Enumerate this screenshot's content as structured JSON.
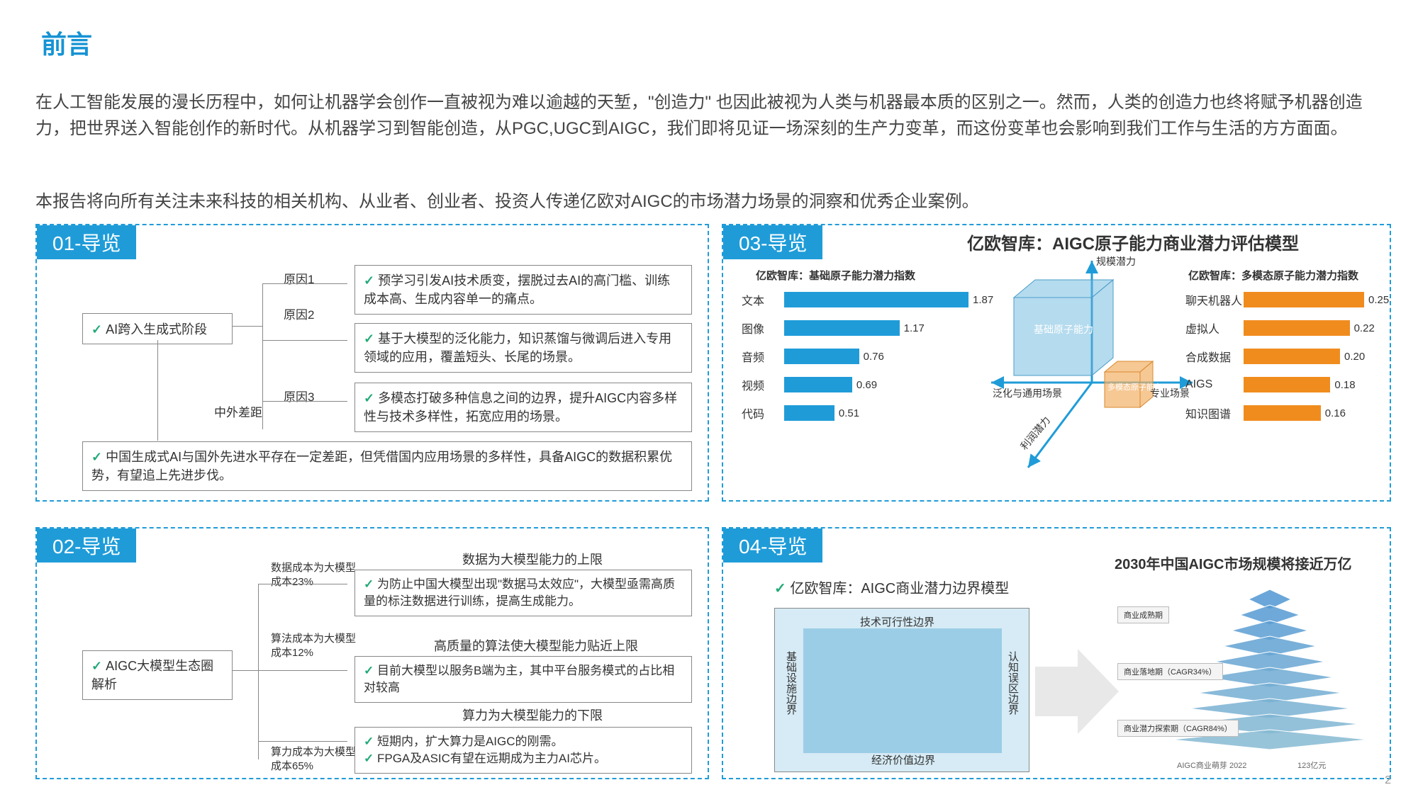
{
  "page": {
    "title": "前言",
    "number": "2"
  },
  "intro": {
    "p1": "在人工智能发展的漫长历程中，如何让机器学会创作一直被视为难以逾越的天堑，\"创造力\" 也因此被视为人类与机器最本质的区别之一。然而，人类的创造力也终将赋予机器创造力，把世界送入智能创作的新时代。从机器学习到智能创造，从PGC,UGC到AIGC，我们即将见证一场深刻的生产力变革，而这份变革也会影响到我们工作与生活的方方面面。",
    "p2": "本报告将向所有关注未来科技的相关机构、从业者、创业者、投资人传递亿欧对AIGC的市场潜力场景的洞察和优秀企业案例。"
  },
  "panel01": {
    "header": "01-导览",
    "box1": "AI跨入生成式阶段",
    "reason1_label": "原因1",
    "reason2_label": "原因2",
    "reason3_label": "原因3",
    "gap_label": "中外差距",
    "box2": "预学习引发AI技术质变，摆脱过去AI的高门槛、训练成本高、生成内容单一的痛点。",
    "box3": "基于大模型的泛化能力，知识蒸馏与微调后进入专用领域的应用，覆盖短头、长尾的场景。",
    "box4": "多模态打破多种信息之间的边界，提升AIGC内容多样性与技术多样性，拓宽应用的场景。",
    "box5": "中国生成式AI与国外先进水平存在一定差距，但凭借国内应用场景的多样性，具备AIGC的数据积累优势，有望追上先进步伐。"
  },
  "panel02": {
    "header": "02-导览",
    "box1": "AIGC大模型生态圈解析",
    "hdr1": "数据为大模型能力的上限",
    "hdr2": "高质量的算法使大模型能力贴近上限",
    "hdr3": "算力为大模型能力的下限",
    "lbl1": "数据成本为大模型成本23%",
    "lbl2": "算法成本为大模型成本12%",
    "lbl3": "算力成本为大模型成本65%",
    "box2": "为防止中国大模型出现\"数据马太效应\"，大模型亟需高质量的标注数据进行训练，提高生成能力。",
    "box3": "目前大模型以服务B端为主，其中平台服务模式的占比相对较高",
    "box4a": "短期内，扩大算力是AIGC的刚需。",
    "box4b": "FPGA及ASIC有望在远期成为主力AI芯片。"
  },
  "panel03": {
    "header": "03-导览",
    "title": "亿欧智库：AIGC原子能力商业潜力评估模型",
    "chart1": {
      "title": "亿欧智库：基础原子能力潜力指数",
      "color": "#1f9cd8",
      "max": 1.87,
      "rows": [
        {
          "label": "文本",
          "value": 1.87
        },
        {
          "label": "图像",
          "value": 1.17
        },
        {
          "label": "音频",
          "value": 0.76
        },
        {
          "label": "视频",
          "value": 0.69
        },
        {
          "label": "代码",
          "value": 0.51
        }
      ]
    },
    "chart2": {
      "title": "亿欧智库：多模态原子能力潜力指数",
      "color": "#f08c1e",
      "max": 0.25,
      "rows": [
        {
          "label": "聊天机器人",
          "value": 0.25
        },
        {
          "label": "虚拟人",
          "value": 0.22
        },
        {
          "label": "合成数据",
          "value": 0.2
        },
        {
          "label": "AIGS",
          "value": 0.18
        },
        {
          "label": "知识图谱",
          "value": 0.16
        }
      ]
    },
    "cube": {
      "axis_up": "规模潜力",
      "axis_left": "泛化与通用场景",
      "axis_right": "专业场景",
      "axis_diag": "利润潜力",
      "big_label": "基础原子能力",
      "small_label": "多模态原子能力"
    }
  },
  "panel04": {
    "header": "04-导览",
    "sub": "亿欧智库：AIGC商业潜力边界模型",
    "edges": {
      "top": "技术可行性边界",
      "bottom": "经济价值边界",
      "left": "基础设施边界",
      "right": "认知误区边界"
    },
    "title2": "2030年中国AIGC市场规模将接近万亿",
    "mini_labels": {
      "l1": "商业成熟期",
      "l2": "商业落地期（CAGR34%）",
      "l3": "商业潜力探索期（CAGR84%）",
      "l4": "AIGC商业萌芽 2022",
      "l5": "123亿元"
    }
  },
  "colors": {
    "accent": "#1f9cd8",
    "orange": "#f08c1e",
    "dash": "#1f9cd8"
  }
}
